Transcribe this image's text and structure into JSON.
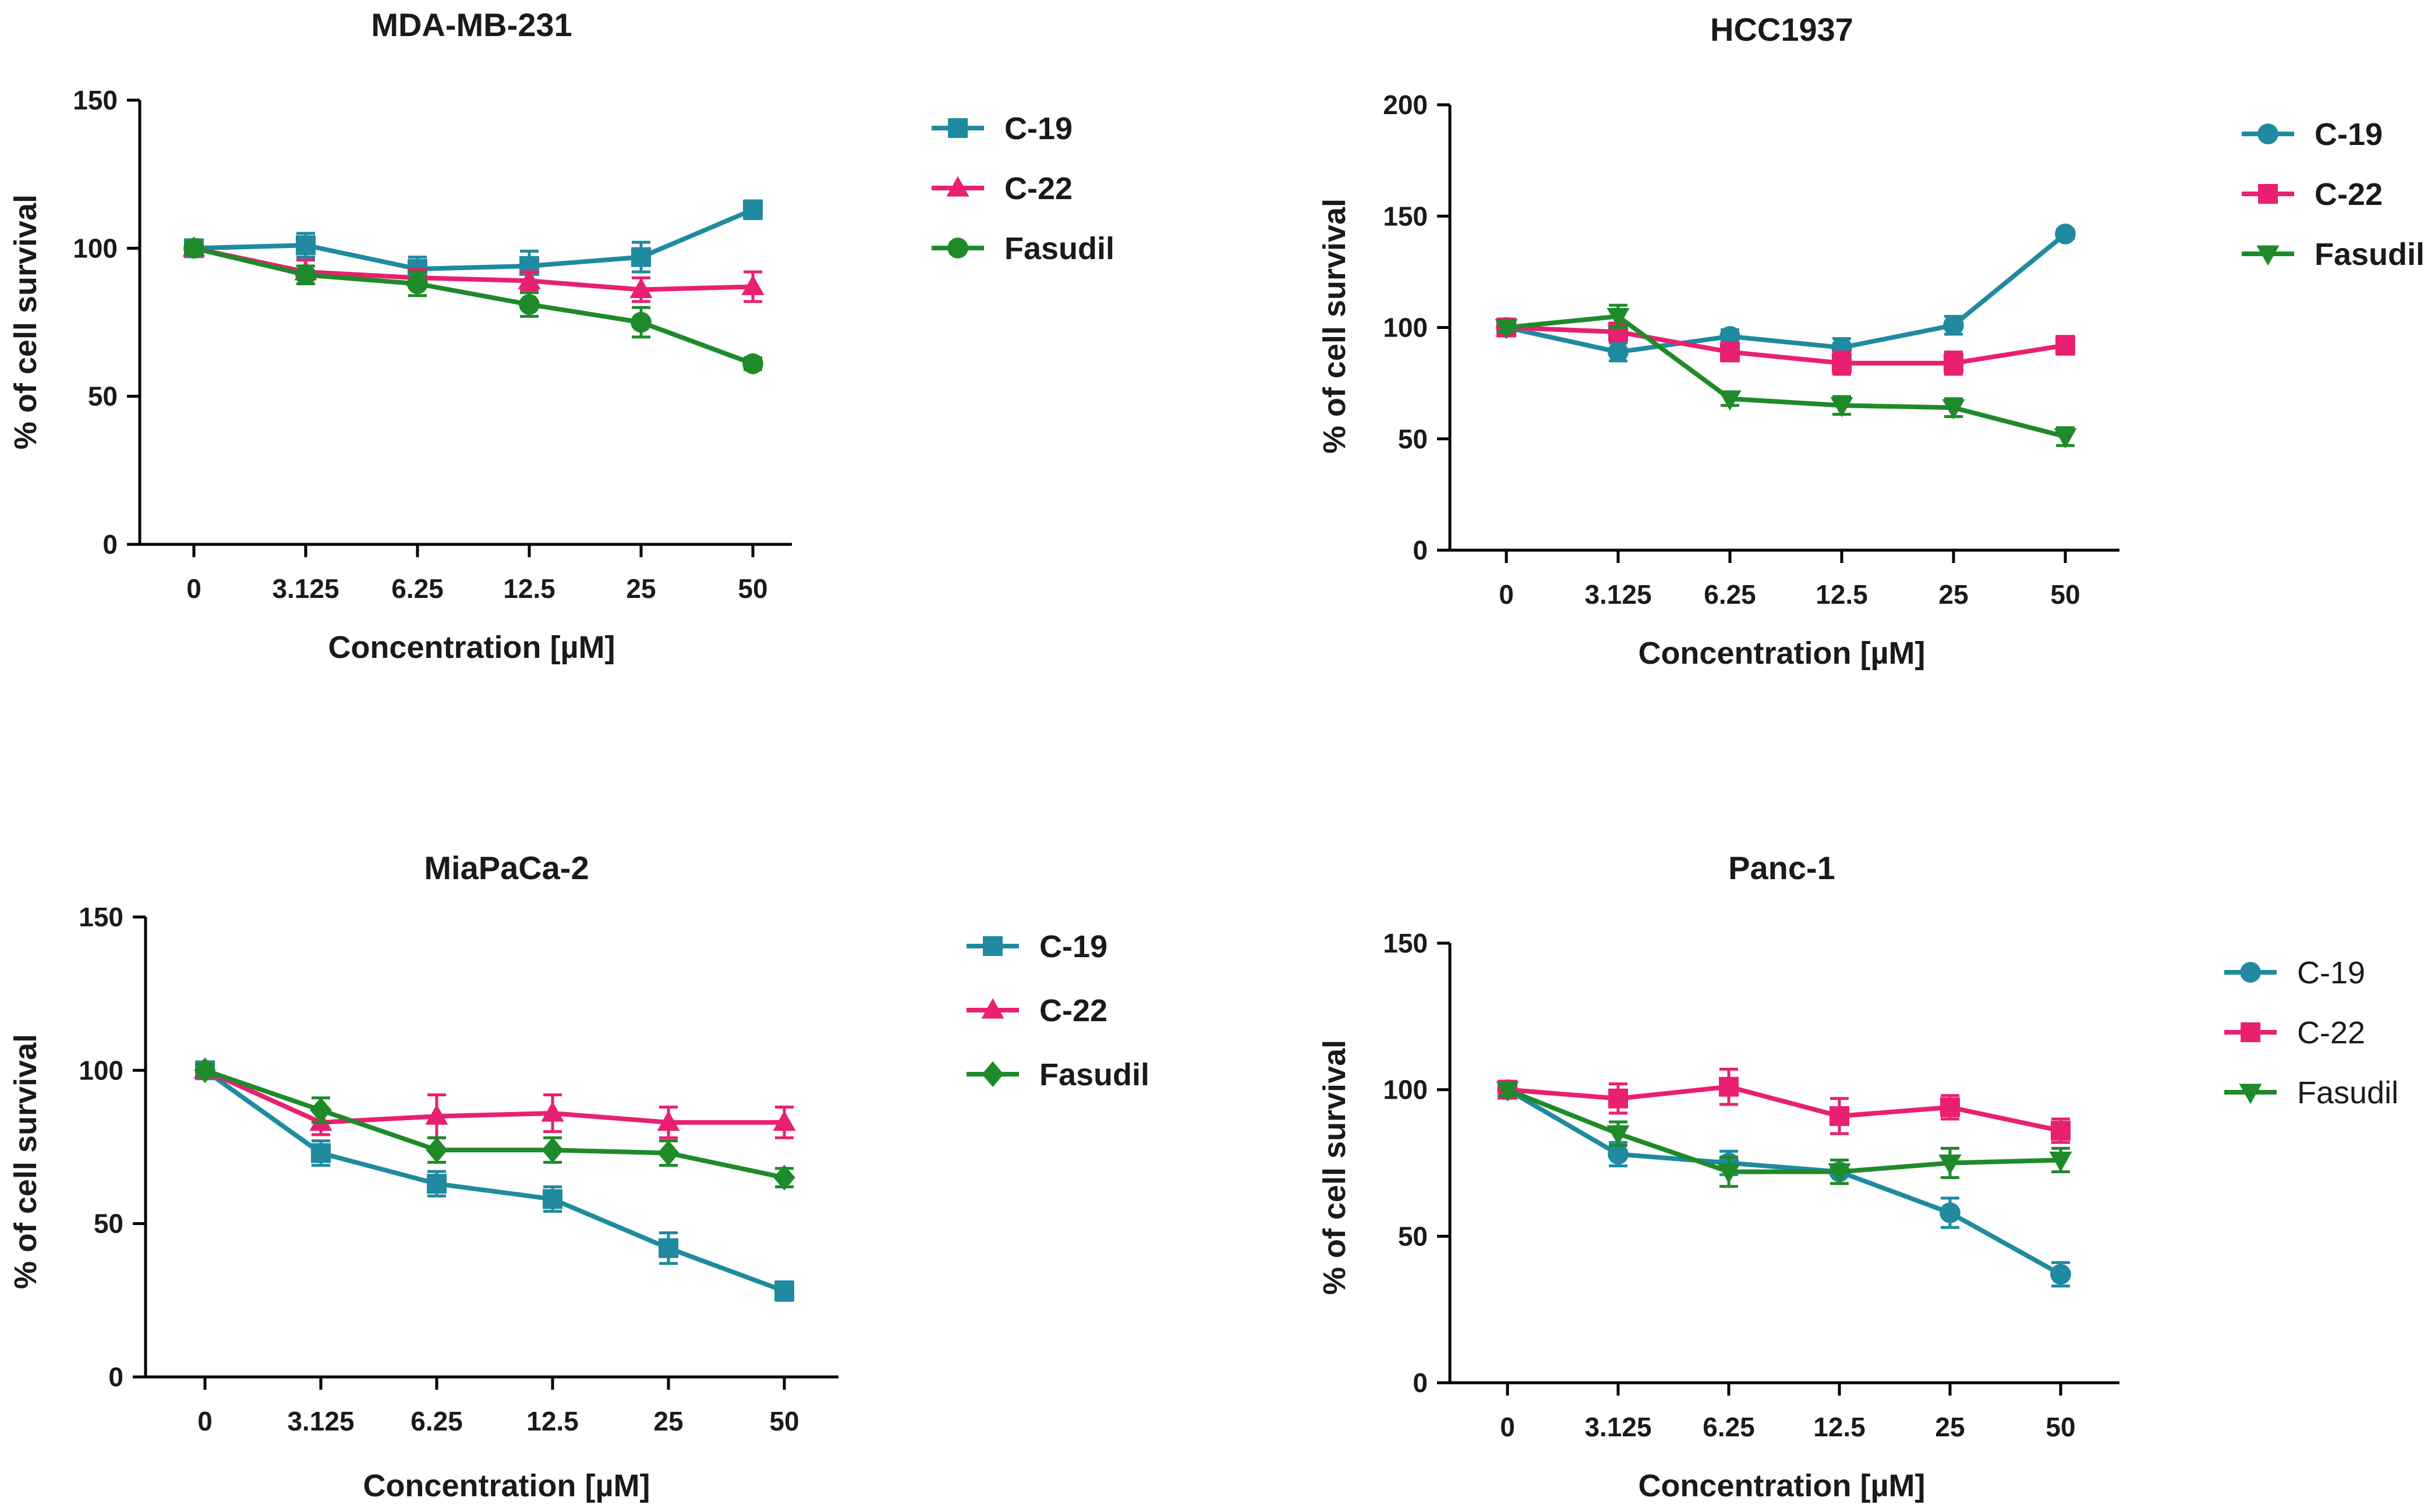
{
  "chart_data": [
    {
      "type": "line",
      "title": "MDA-MB-231",
      "xlabel": "Concentration [µM]",
      "ylabel": "% of cell survival",
      "categories": [
        "0",
        "3.125",
        "6.25",
        "12.5",
        "25",
        "50"
      ],
      "ylim": [
        0,
        150
      ],
      "yticks": [
        0,
        50,
        100,
        150
      ],
      "legend_position": "right",
      "series": [
        {
          "name": "C-19",
          "color": "#1f8aa0",
          "marker": "square",
          "values": [
            100,
            101,
            93,
            94,
            97,
            113
          ],
          "errors": [
            2,
            4,
            4,
            5,
            5,
            3
          ]
        },
        {
          "name": "C-22",
          "color": "#e8206f",
          "marker": "triangle-up",
          "values": [
            100,
            92,
            90,
            89,
            86,
            87
          ],
          "errors": [
            2,
            4,
            3,
            3,
            4,
            5
          ]
        },
        {
          "name": "Fasudil",
          "color": "#1f8a2a",
          "marker": "circle",
          "values": [
            100,
            91,
            88,
            81,
            75,
            61
          ],
          "errors": [
            2,
            3,
            4,
            4,
            5,
            2
          ]
        }
      ]
    },
    {
      "type": "line",
      "title": "HCC1937",
      "xlabel": "Concentration [µM]",
      "ylabel": "% of cell survival",
      "categories": [
        "0",
        "3.125",
        "6.25",
        "12.5",
        "25",
        "50"
      ],
      "ylim": [
        0,
        200
      ],
      "yticks": [
        0,
        50,
        100,
        150,
        200
      ],
      "legend_position": "right",
      "series": [
        {
          "name": "C-19",
          "color": "#1f8aa0",
          "marker": "circle",
          "values": [
            100,
            89,
            96,
            91,
            101,
            142
          ],
          "errors": [
            2,
            4,
            3,
            4,
            4,
            2
          ]
        },
        {
          "name": "C-22",
          "color": "#e8206f",
          "marker": "square",
          "values": [
            100,
            98,
            89,
            84,
            84,
            92
          ],
          "errors": [
            2,
            4,
            4,
            5,
            5,
            4
          ]
        },
        {
          "name": "Fasudil",
          "color": "#1f8a2a",
          "marker": "triangle-down",
          "values": [
            100,
            105,
            68,
            65,
            64,
            51
          ],
          "errors": [
            2,
            5,
            3,
            4,
            4,
            4
          ]
        }
      ]
    },
    {
      "type": "line",
      "title": "MiaPaCa-2",
      "xlabel": "Concentration [µM]",
      "ylabel": "% of cell survival",
      "categories": [
        "0",
        "3.125",
        "6.25",
        "12.5",
        "25",
        "50"
      ],
      "ylim": [
        0,
        150
      ],
      "yticks": [
        0,
        50,
        100,
        150
      ],
      "legend_position": "right",
      "series": [
        {
          "name": "C-19",
          "color": "#1f8aa0",
          "marker": "square",
          "values": [
            100,
            73,
            63,
            58,
            42,
            28
          ],
          "errors": [
            2,
            4,
            4,
            4,
            5,
            3
          ]
        },
        {
          "name": "C-22",
          "color": "#e8206f",
          "marker": "triangle-up",
          "values": [
            100,
            83,
            85,
            86,
            83,
            83
          ],
          "errors": [
            2,
            4,
            7,
            6,
            5,
            5
          ]
        },
        {
          "name": "Fasudil",
          "color": "#1f8a2a",
          "marker": "diamond",
          "values": [
            100,
            87,
            74,
            74,
            73,
            65
          ],
          "errors": [
            2,
            4,
            4,
            4,
            4,
            3
          ]
        }
      ]
    },
    {
      "type": "line",
      "title": "Panc-1",
      "xlabel": "Concentration [µM]",
      "ylabel": "% of cell survival",
      "categories": [
        "0",
        "3.125",
        "6.25",
        "12.5",
        "25",
        "50"
      ],
      "ylim": [
        0,
        150
      ],
      "yticks": [
        0,
        50,
        100,
        150
      ],
      "legend_position": "right",
      "series": [
        {
          "name": "C-19",
          "color": "#1f8aa0",
          "marker": "circle",
          "values": [
            100,
            78,
            75,
            72,
            58,
            37
          ],
          "errors": [
            2,
            4,
            4,
            4,
            5,
            4
          ]
        },
        {
          "name": "C-22",
          "color": "#e8206f",
          "marker": "square",
          "values": [
            100,
            97,
            101,
            91,
            94,
            86
          ],
          "errors": [
            2,
            5,
            6,
            6,
            4,
            4
          ]
        },
        {
          "name": "Fasudil",
          "color": "#1f8a2a",
          "marker": "triangle-down",
          "values": [
            100,
            85,
            72,
            72,
            75,
            76
          ],
          "errors": [
            2,
            4,
            5,
            4,
            5,
            4
          ]
        }
      ]
    }
  ]
}
